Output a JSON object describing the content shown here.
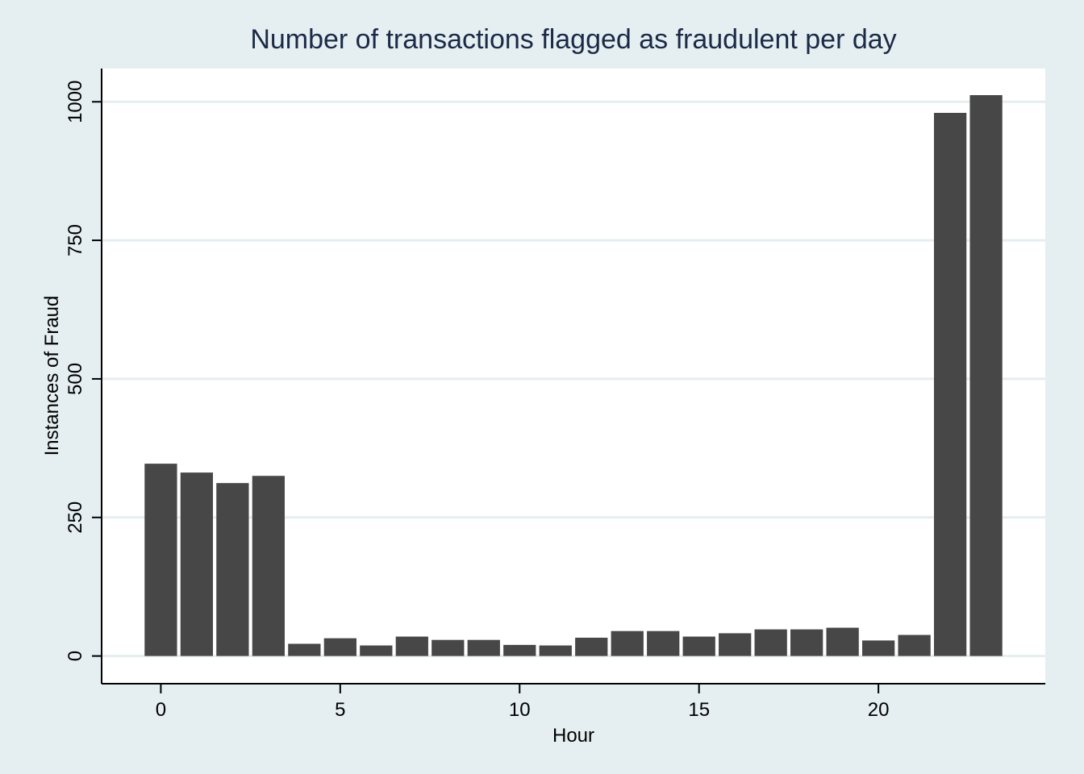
{
  "chart_data": {
    "type": "bar",
    "title": "Number of transactions flagged as fraudulent per day",
    "xlabel": "Hour",
    "ylabel": "Instances of Fraud",
    "x": [
      0,
      1,
      2,
      3,
      4,
      5,
      6,
      7,
      8,
      9,
      10,
      11,
      12,
      13,
      14,
      15,
      16,
      17,
      18,
      19,
      20,
      21,
      22,
      23
    ],
    "values": [
      347,
      331,
      312,
      325,
      22,
      32,
      19,
      35,
      29,
      29,
      20,
      19,
      33,
      45,
      45,
      35,
      41,
      48,
      48,
      51,
      28,
      38,
      980,
      1012
    ],
    "xlim": [
      -1.65,
      24.65
    ],
    "ylim": [
      -50,
      1060
    ],
    "xticks": [
      0,
      5,
      10,
      15,
      20
    ],
    "xtick_labels": [
      "0",
      "5",
      "10",
      "15",
      "20"
    ],
    "yticks": [
      0,
      250,
      500,
      750,
      1000
    ],
    "ytick_labels": [
      "0",
      "250",
      "500",
      "750",
      "1000"
    ],
    "grid": true,
    "legend": "none",
    "colors": {
      "background": "#e5eef0",
      "plot_background": "#ffffff",
      "bar": "#474747",
      "grid": "#e5eef0",
      "title": "#1a2a47",
      "text": "#000000"
    }
  }
}
